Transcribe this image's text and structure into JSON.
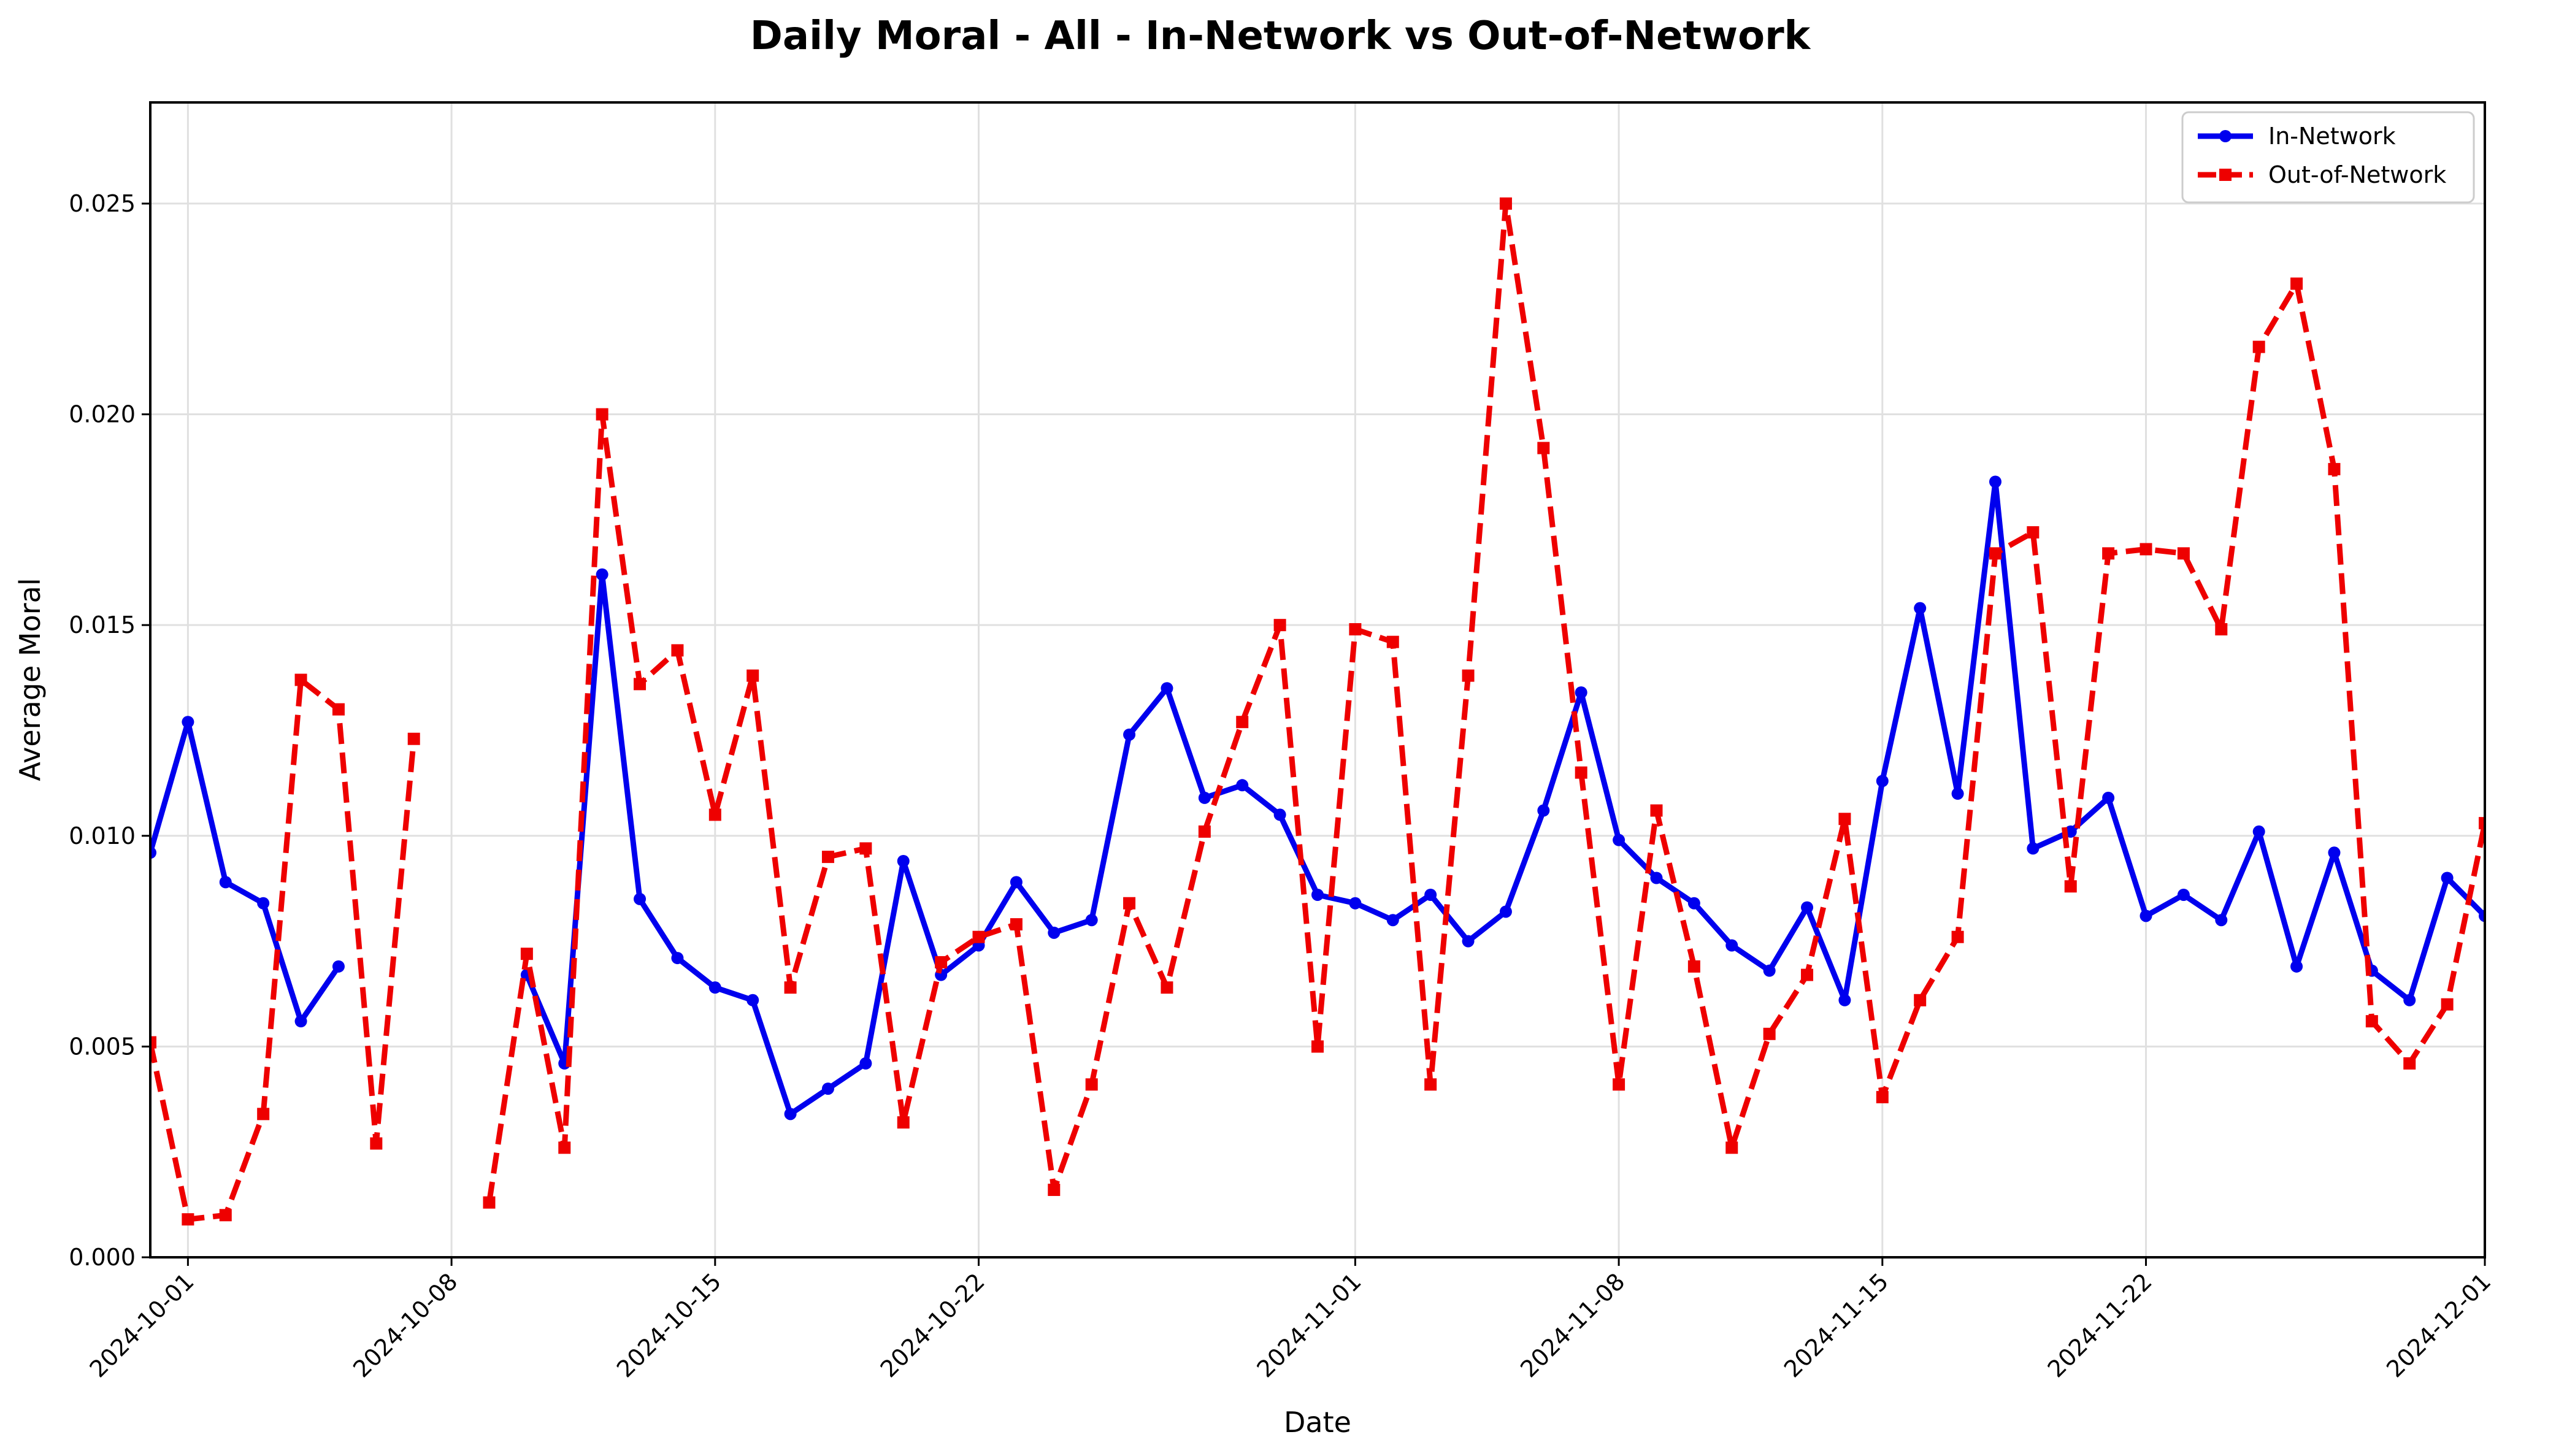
{
  "chart_data": {
    "type": "line",
    "title": "Daily Moral - All - In-Network vs Out-of-Network",
    "xlabel": "Date",
    "ylabel": "Average Moral",
    "ylim": [
      0,
      0.0274
    ],
    "xlim": [
      "2024-09-30",
      "2024-12-01"
    ],
    "grid": true,
    "legend_position": "top-right",
    "y_ticks": [
      "0.000",
      "0.005",
      "0.010",
      "0.015",
      "0.020",
      "0.025"
    ],
    "x_ticks": [
      "2024-10-01",
      "2024-10-08",
      "2024-10-15",
      "2024-10-22",
      "2024-11-01",
      "2024-11-08",
      "2024-11-15",
      "2024-11-22",
      "2024-12-01"
    ],
    "series": [
      {
        "name": "In-Network",
        "color": "#0000ee",
        "style": "solid",
        "marker": "circle",
        "points": [
          [
            "2024-09-30",
            0.0096
          ],
          [
            "2024-10-01",
            0.0127
          ],
          [
            "2024-10-02",
            0.0089
          ],
          [
            "2024-10-03",
            0.0084
          ],
          [
            "2024-10-04",
            0.0056
          ],
          [
            "2024-10-05",
            0.0069
          ],
          [
            "2024-10-06",
            null
          ],
          [
            "2024-10-07",
            null
          ],
          [
            "2024-10-08",
            null
          ],
          [
            "2024-10-09",
            null
          ],
          [
            "2024-10-10",
            0.0067
          ],
          [
            "2024-10-11",
            0.0046
          ],
          [
            "2024-10-12",
            0.0162
          ],
          [
            "2024-10-13",
            0.0085
          ],
          [
            "2024-10-14",
            0.0071
          ],
          [
            "2024-10-15",
            0.0064
          ],
          [
            "2024-10-16",
            0.0061
          ],
          [
            "2024-10-17",
            0.0034
          ],
          [
            "2024-10-18",
            0.004
          ],
          [
            "2024-10-19",
            0.0046
          ],
          [
            "2024-10-20",
            0.0094
          ],
          [
            "2024-10-21",
            0.0067
          ],
          [
            "2024-10-22",
            0.0074
          ],
          [
            "2024-10-23",
            0.0089
          ],
          [
            "2024-10-24",
            0.0077
          ],
          [
            "2024-10-25",
            0.008
          ],
          [
            "2024-10-26",
            0.0124
          ],
          [
            "2024-10-27",
            0.0135
          ],
          [
            "2024-10-28",
            0.0109
          ],
          [
            "2024-10-29",
            0.0112
          ],
          [
            "2024-10-30",
            0.0105
          ],
          [
            "2024-10-31",
            0.0086
          ],
          [
            "2024-11-01",
            0.0084
          ],
          [
            "2024-11-02",
            0.008
          ],
          [
            "2024-11-03",
            0.0086
          ],
          [
            "2024-11-04",
            0.0075
          ],
          [
            "2024-11-05",
            0.0082
          ],
          [
            "2024-11-06",
            0.0106
          ],
          [
            "2024-11-07",
            0.0134
          ],
          [
            "2024-11-08",
            0.0099
          ],
          [
            "2024-11-09",
            0.009
          ],
          [
            "2024-11-10",
            0.0084
          ],
          [
            "2024-11-11",
            0.0074
          ],
          [
            "2024-11-12",
            0.0068
          ],
          [
            "2024-11-13",
            0.0083
          ],
          [
            "2024-11-14",
            0.0061
          ],
          [
            "2024-11-15",
            0.0113
          ],
          [
            "2024-11-16",
            0.0154
          ],
          [
            "2024-11-17",
            0.011
          ],
          [
            "2024-11-18",
            0.0184
          ],
          [
            "2024-11-19",
            0.0097
          ],
          [
            "2024-11-20",
            0.0101
          ],
          [
            "2024-11-21",
            0.0109
          ],
          [
            "2024-11-22",
            0.0081
          ],
          [
            "2024-11-23",
            0.0086
          ],
          [
            "2024-11-24",
            0.008
          ],
          [
            "2024-11-25",
            0.0101
          ],
          [
            "2024-11-26",
            0.0069
          ],
          [
            "2024-11-27",
            0.0096
          ],
          [
            "2024-11-28",
            0.0068
          ],
          [
            "2024-11-29",
            0.0061
          ],
          [
            "2024-11-30",
            0.009
          ],
          [
            "2024-12-01",
            0.0081
          ]
        ]
      },
      {
        "name": "Out-of-Network",
        "color": "#ee0000",
        "style": "dashed",
        "marker": "square",
        "points": [
          [
            "2024-09-30",
            0.0051
          ],
          [
            "2024-10-01",
            0.0009
          ],
          [
            "2024-10-02",
            0.001
          ],
          [
            "2024-10-03",
            0.0034
          ],
          [
            "2024-10-04",
            0.0137
          ],
          [
            "2024-10-05",
            0.013
          ],
          [
            "2024-10-06",
            0.0027
          ],
          [
            "2024-10-07",
            0.0123
          ],
          [
            "2024-10-08",
            null
          ],
          [
            "2024-10-09",
            0.0013
          ],
          [
            "2024-10-10",
            0.0072
          ],
          [
            "2024-10-11",
            0.0026
          ],
          [
            "2024-10-12",
            0.02
          ],
          [
            "2024-10-13",
            0.0136
          ],
          [
            "2024-10-14",
            0.0144
          ],
          [
            "2024-10-15",
            0.0105
          ],
          [
            "2024-10-16",
            0.0138
          ],
          [
            "2024-10-17",
            0.0064
          ],
          [
            "2024-10-18",
            0.0095
          ],
          [
            "2024-10-19",
            0.0097
          ],
          [
            "2024-10-20",
            0.0032
          ],
          [
            "2024-10-21",
            0.007
          ],
          [
            "2024-10-22",
            0.0076
          ],
          [
            "2024-10-23",
            0.0079
          ],
          [
            "2024-10-24",
            0.0016
          ],
          [
            "2024-10-25",
            0.0041
          ],
          [
            "2024-10-26",
            0.0084
          ],
          [
            "2024-10-27",
            0.0064
          ],
          [
            "2024-10-28",
            0.0101
          ],
          [
            "2024-10-29",
            0.0127
          ],
          [
            "2024-10-30",
            0.015
          ],
          [
            "2024-10-31",
            0.005
          ],
          [
            "2024-11-01",
            0.0149
          ],
          [
            "2024-11-02",
            0.0146
          ],
          [
            "2024-11-03",
            0.0041
          ],
          [
            "2024-11-04",
            0.0138
          ],
          [
            "2024-11-05",
            0.025
          ],
          [
            "2024-11-06",
            0.0192
          ],
          [
            "2024-11-07",
            0.0115
          ],
          [
            "2024-11-08",
            0.0041
          ],
          [
            "2024-11-09",
            0.0106
          ],
          [
            "2024-11-10",
            0.0069
          ],
          [
            "2024-11-11",
            0.0026
          ],
          [
            "2024-11-12",
            0.0053
          ],
          [
            "2024-11-13",
            0.0067
          ],
          [
            "2024-11-14",
            0.0104
          ],
          [
            "2024-11-15",
            0.0038
          ],
          [
            "2024-11-16",
            0.0061
          ],
          [
            "2024-11-17",
            0.0076
          ],
          [
            "2024-11-18",
            0.0167
          ],
          [
            "2024-11-19",
            0.0172
          ],
          [
            "2024-11-20",
            0.0088
          ],
          [
            "2024-11-21",
            0.0167
          ],
          [
            "2024-11-22",
            0.0168
          ],
          [
            "2024-11-23",
            0.0167
          ],
          [
            "2024-11-24",
            0.0149
          ],
          [
            "2024-11-25",
            0.0216
          ],
          [
            "2024-11-26",
            0.0231
          ],
          [
            "2024-11-27",
            0.0187
          ],
          [
            "2024-11-28",
            0.0056
          ],
          [
            "2024-11-29",
            0.0046
          ],
          [
            "2024-11-30",
            0.006
          ],
          [
            "2024-12-01",
            0.0103
          ]
        ]
      }
    ]
  }
}
